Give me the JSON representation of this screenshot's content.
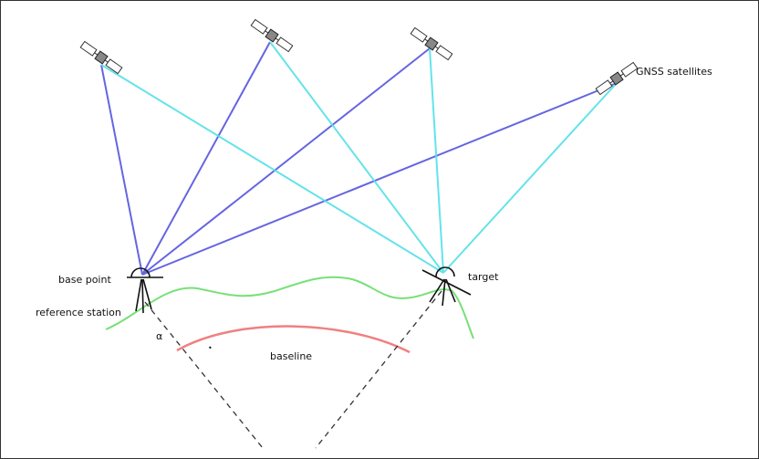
{
  "labels": {
    "satellites": "GNSS satellites",
    "base_point": "base point",
    "reference_station": "reference station",
    "target": "target",
    "baseline": "baseline",
    "alpha": "α",
    "dot": "•"
  },
  "colors": {
    "base_rays": "#4b4bdc",
    "target_rays": "#55e0e8",
    "terrain": "#77e077",
    "baseline": "#f08080",
    "tripod": "#111111",
    "dashed": "#333333"
  }
}
